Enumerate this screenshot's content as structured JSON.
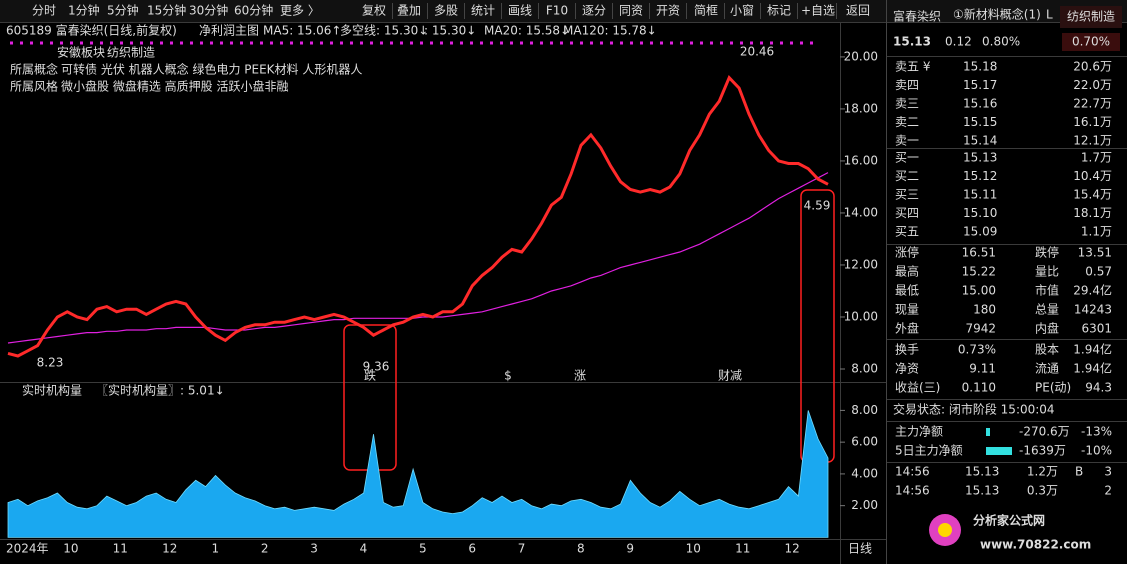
{
  "toolbar": {
    "tabs": [
      "分时",
      "1分钟",
      "5分钟",
      "15分钟",
      "30分钟",
      "60分钟",
      "更多 〉"
    ],
    "buttons": [
      "复权",
      "叠加",
      "多股",
      "统计",
      "画线",
      "F10",
      "逐分",
      "同资",
      "开资",
      "简框",
      "小窗",
      "标记",
      "+自选",
      "返回"
    ]
  },
  "chart_header": {
    "symbol": "605189 富春染织(日线,前复权)",
    "template": "净利润主图",
    "indicators": [
      "MA5: 15.06↑",
      "多空线: 15.30↓",
      ": 15.30↓",
      "MA20: 15.58↓",
      "MA120: 15.78↓"
    ],
    "region": "安徽板块",
    "industry": "纺织制造",
    "concept_label": "所属概念",
    "concepts": "可转债 光伏 机器人概念 绿色电力 PEEK材料 人形机器人",
    "style_label": "所属风格",
    "styles": "微小盘股 微盘精选 高质押股 活跃小盘非融"
  },
  "chart_data": [
    {
      "type": "line",
      "categories": [
        "2024年",
        null,
        null,
        null,
        null,
        null,
        "10",
        null,
        null,
        null,
        null,
        "11",
        null,
        null,
        null,
        null,
        "12",
        null,
        null,
        null,
        null,
        "1",
        null,
        null,
        null,
        null,
        "2",
        null,
        null,
        null,
        null,
        "3",
        null,
        null,
        null,
        null,
        "4",
        null,
        null,
        null,
        null,
        null,
        "5",
        null,
        null,
        null,
        null,
        "6",
        null,
        null,
        null,
        null,
        "7",
        null,
        null,
        null,
        null,
        null,
        "8",
        null,
        null,
        null,
        null,
        "9",
        null,
        null,
        null,
        null,
        null,
        "10",
        null,
        null,
        null,
        null,
        "11",
        null,
        null,
        null,
        null,
        "12",
        null,
        null,
        null,
        null
      ],
      "series": [
        {
          "color": "#ff2a2a",
          "values": [
            8.6,
            8.5,
            8.7,
            8.9,
            9.5,
            10.0,
            10.2,
            10.0,
            9.9,
            10.3,
            10.4,
            10.2,
            10.3,
            10.3,
            10.1,
            10.3,
            10.5,
            10.6,
            10.5,
            10.0,
            9.6,
            9.3,
            9.1,
            9.4,
            9.6,
            9.7,
            9.7,
            9.8,
            9.8,
            9.9,
            10.0,
            9.9,
            10.0,
            10.1,
            10.0,
            9.8,
            9.6,
            9.3,
            9.5,
            9.7,
            9.8,
            10.0,
            10.1,
            10.0,
            10.2,
            10.2,
            10.5,
            11.2,
            11.6,
            11.9,
            12.3,
            12.6,
            12.5,
            13.0,
            13.6,
            14.3,
            14.6,
            15.5,
            16.6,
            17.0,
            16.5,
            15.8,
            15.2,
            14.9,
            14.8,
            14.9,
            14.8,
            15.0,
            15.5,
            16.4,
            17.0,
            17.8,
            18.3,
            19.2,
            18.8,
            17.8,
            17.0,
            16.4,
            16.0,
            15.9,
            15.9,
            15.7,
            15.3,
            15.1
          ]
        },
        {
          "color": "#e020e0",
          "values": [
            9.0,
            9.05,
            9.1,
            9.15,
            9.2,
            9.25,
            9.3,
            9.35,
            9.4,
            9.4,
            9.45,
            9.45,
            9.5,
            9.5,
            9.5,
            9.55,
            9.55,
            9.6,
            9.6,
            9.6,
            9.6,
            9.55,
            9.5,
            9.5,
            9.5,
            9.55,
            9.6,
            9.6,
            9.65,
            9.7,
            9.75,
            9.8,
            9.85,
            9.9,
            9.9,
            9.95,
            9.95,
            9.95,
            9.95,
            9.95,
            9.95,
            9.95,
            10.0,
            10.0,
            10.0,
            10.05,
            10.1,
            10.15,
            10.2,
            10.3,
            10.4,
            10.5,
            10.6,
            10.7,
            10.85,
            11.0,
            11.1,
            11.2,
            11.35,
            11.5,
            11.6,
            11.75,
            11.9,
            12.0,
            12.1,
            12.2,
            12.3,
            12.4,
            12.5,
            12.65,
            12.8,
            13.0,
            13.2,
            13.4,
            13.6,
            13.8,
            14.05,
            14.3,
            14.55,
            14.75,
            14.95,
            15.15,
            15.35,
            15.55
          ]
        }
      ],
      "ylim": [
        7.5,
        20.65
      ],
      "yticks": [
        {
          "value": 8,
          "label": "8.00"
        },
        {
          "value": 10,
          "label": "10.00"
        },
        {
          "value": 12,
          "label": "12.00"
        },
        {
          "value": 14,
          "label": "14.00"
        },
        {
          "value": 16,
          "label": "16.00"
        },
        {
          "value": 18,
          "label": "18.00"
        },
        {
          "value": 20,
          "label": "20.00"
        }
      ],
      "annotations": [
        "20.46",
        "8.23",
        "9.36",
        "4.59"
      ],
      "signals": [
        "跌",
        "$",
        "涨",
        "财",
        "减"
      ]
    },
    {
      "type": "area",
      "title": "实时机构量",
      "indicator": "〖实时机构量〗: 5.01↓",
      "color": "#1aa8f0",
      "values": [
        2.2,
        2.4,
        2.0,
        2.3,
        2.5,
        2.8,
        2.2,
        1.9,
        1.8,
        2.0,
        2.6,
        2.3,
        2.0,
        2.2,
        2.6,
        2.8,
        2.4,
        2.2,
        3.0,
        3.6,
        3.2,
        3.9,
        3.3,
        2.8,
        2.5,
        2.3,
        2.0,
        1.8,
        1.9,
        1.7,
        1.8,
        1.9,
        1.8,
        1.7,
        2.1,
        2.4,
        2.8,
        6.5,
        2.2,
        1.9,
        2.0,
        4.3,
        2.2,
        1.8,
        1.6,
        1.5,
        1.6,
        2.0,
        2.5,
        2.2,
        2.6,
        2.2,
        2.4,
        2.0,
        1.8,
        2.1,
        2.0,
        2.3,
        2.4,
        2.2,
        1.9,
        1.8,
        2.1,
        3.6,
        2.8,
        2.2,
        1.9,
        2.3,
        2.9,
        2.4,
        2.0,
        2.2,
        2.4,
        2.1,
        1.9,
        1.8,
        2.0,
        2.2,
        2.4,
        3.2,
        2.6,
        8.0,
        6.2,
        5.0
      ],
      "ylim": [
        -0.1,
        9.6
      ],
      "yticks": [
        {
          "value": 2,
          "label": "2.00"
        },
        {
          "value": 4,
          "label": "4.00"
        },
        {
          "value": 6,
          "label": "6.00"
        },
        {
          "value": 8,
          "label": "8.00"
        }
      ],
      "period": "日线"
    }
  ],
  "quote_panel": {
    "name": "富春染织",
    "concept": "①新材料概念(1)",
    "flag": "L",
    "industry": "纺织制造",
    "price": "15.13",
    "change": "0.12",
    "pct": "0.80%",
    "industry_pct": "0.70%",
    "asks": [
      [
        "卖五 ¥",
        "15.18",
        "20.6万"
      ],
      [
        "卖四",
        "15.17",
        "22.0万"
      ],
      [
        "卖三",
        "15.16",
        "22.7万"
      ],
      [
        "卖二",
        "15.15",
        "16.1万"
      ],
      [
        "卖一",
        "15.14",
        "12.1万"
      ]
    ],
    "bids": [
      [
        "买一",
        "15.13",
        "1.7万"
      ],
      [
        "买二",
        "15.12",
        "10.4万"
      ],
      [
        "买三",
        "15.11",
        "15.4万"
      ],
      [
        "买四",
        "15.10",
        "18.1万"
      ],
      [
        "买五",
        "15.09",
        "1.1万"
      ]
    ],
    "stats": [
      [
        "涨停",
        "16.51",
        "跌停",
        "13.51"
      ],
      [
        "最高",
        "15.22",
        "量比",
        "0.57"
      ],
      [
        "最低",
        "15.00",
        "市值",
        "29.4亿"
      ],
      [
        "现量",
        "180",
        "总量",
        "14243"
      ],
      [
        "外盘",
        "7942",
        "内盘",
        "6301"
      ]
    ],
    "stats2": [
      [
        "换手",
        "0.73%",
        "股本",
        "1.94亿"
      ],
      [
        "净资",
        "9.11",
        "流通",
        "1.94亿"
      ],
      [
        "收益(三)",
        "0.110",
        "PE(动)",
        "94.3"
      ]
    ],
    "status": "交易状态: 闭市阶段 15:00:04",
    "flows": [
      [
        "主力净额",
        "-270.6万",
        "-13%"
      ],
      [
        "5日主力净额",
        "-1639万",
        "-10%"
      ]
    ],
    "ticks": [
      {
        "time": "14:56",
        "price": "15.13",
        "vol": "1.2万",
        "side": "B",
        "count": "3"
      },
      {
        "time": "14:56",
        "price": "15.13",
        "vol": "0.3万",
        "count": "2"
      }
    ]
  },
  "logo": {
    "name": "分析家公式网",
    "url": "www.70822.com"
  }
}
